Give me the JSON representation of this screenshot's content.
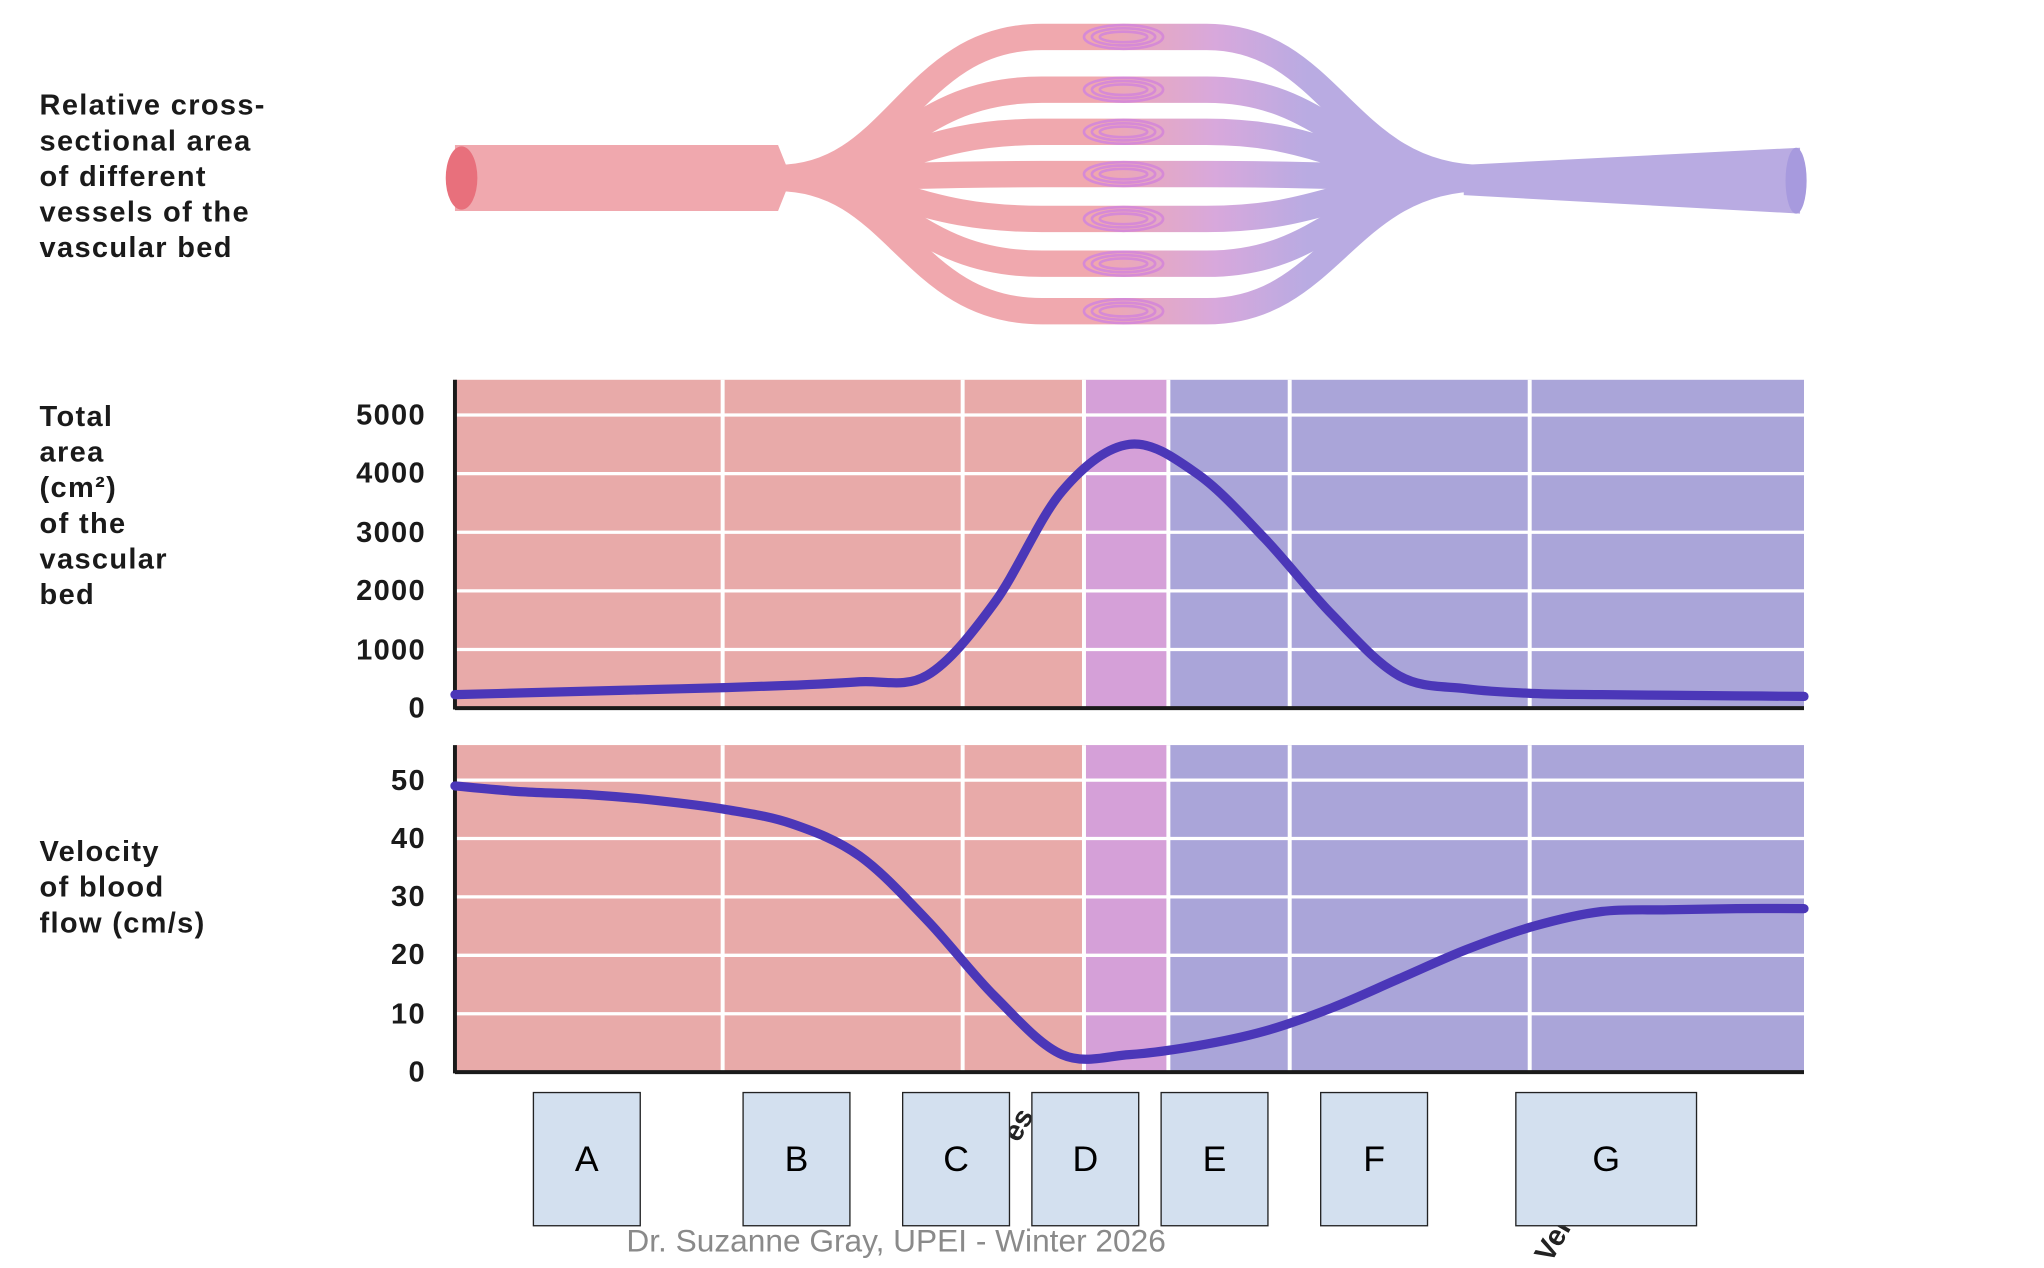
{
  "diagram": {
    "label_lines": [
      "Relative cross-",
      "sectional area",
      "of different",
      "vessels of the",
      "vascular bed"
    ],
    "colors": {
      "arterial": "#f0a8ae",
      "venous": "#b9abe2",
      "capillary": "#d68ad6",
      "artery_end": "#e8707c"
    }
  },
  "chart_data": [
    {
      "type": "line",
      "ylabel_lines": [
        "Total",
        "area",
        "(cm²)",
        "of the",
        "vascular",
        "bed"
      ],
      "yticks": [
        "0",
        "1000",
        "2000",
        "3000",
        "4000",
        "5000"
      ],
      "ylim": [
        0,
        5600
      ],
      "grid": true,
      "series": [
        {
          "values": [
            230,
            260,
            290,
            320,
            350,
            390,
            450,
            560,
            1800,
            3700,
            4500,
            4000,
            2900,
            1600,
            550,
            330,
            250,
            230,
            220,
            210,
            200
          ],
          "color": "#4b37b8"
        }
      ]
    },
    {
      "type": "line",
      "ylabel_lines": [
        "Velocity",
        "of blood",
        "flow (cm/s)"
      ],
      "yticks": [
        "0",
        "10",
        "20",
        "30",
        "40",
        "50"
      ],
      "ylim": [
        0,
        56
      ],
      "grid": true,
      "series": [
        {
          "values": [
            49,
            48,
            47.5,
            46.5,
            45,
            42.5,
            37,
            26,
            13,
            3,
            3,
            4.5,
            7,
            11,
            16,
            21,
            25,
            27.5,
            27.8,
            28,
            28
          ],
          "color": "#4b37b8"
        }
      ]
    }
  ],
  "region_colors": {
    "arterial": "#e8aaa9",
    "capillary": "#d5a0d8",
    "venous": "#aaa5d9"
  },
  "answer_boxes": [
    "A",
    "B",
    "C",
    "D",
    "E",
    "F",
    "G"
  ],
  "hidden_label_fragments": [
    "es",
    "Ven"
  ],
  "footer": "Dr. Suzanne Gray, UPEI - Winter 2026"
}
